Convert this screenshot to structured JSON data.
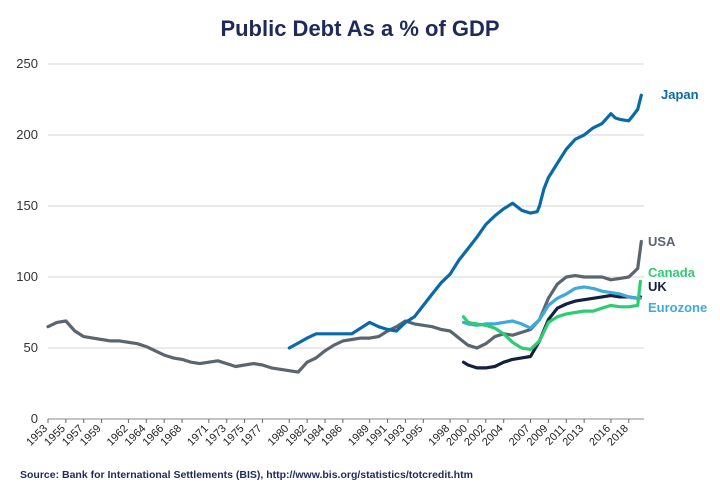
{
  "chart_data": {
    "type": "line",
    "title": "Public Debt As a % of GDP",
    "source": "Source: Bank for International Settlements (BIS), http://www.bis.org/statistics/totcredit.htm",
    "ylim": [
      0,
      250
    ],
    "yticks": [
      0,
      50,
      100,
      150,
      200,
      250
    ],
    "xlim": [
      1953,
      2019.7
    ],
    "xticks": [
      "1953",
      "1955",
      "1957",
      "1959",
      "1962",
      "1964",
      "1966",
      "1968",
      "1971",
      "1973",
      "1975",
      "1977",
      "1980",
      "1982",
      "1984",
      "1986",
      "1989",
      "1991",
      "1993",
      "1995",
      "1998",
      "2000",
      "2002",
      "2004",
      "2007",
      "2009",
      "2011",
      "2013",
      "2016",
      "2018"
    ],
    "grid": "horizontal",
    "series": [
      {
        "name": "Japan",
        "color": "#0a6aa6",
        "x": [
          1980,
          1982,
          1983,
          1985,
          1987,
          1989,
          1990,
          1991,
          1992,
          1993,
          1994,
          1995,
          1996,
          1997,
          1998,
          1999,
          2000,
          2001,
          2002,
          2003,
          2004,
          2005,
          2006,
          2007,
          2007.75,
          2008,
          2008.5,
          2009,
          2010,
          2011,
          2012,
          2013,
          2014,
          2015,
          2016,
          2016.5,
          2017,
          2018,
          2018.5,
          2019,
          2019.4
        ],
        "y": [
          50,
          57,
          60,
          60,
          60,
          68,
          65,
          63,
          62,
          68,
          72,
          80,
          88,
          96,
          102,
          112,
          120,
          128,
          137,
          143,
          148,
          152,
          147,
          145,
          146,
          150,
          162,
          170,
          180,
          190,
          197,
          200,
          205,
          208,
          215,
          212,
          211,
          210,
          214,
          218,
          228
        ]
      },
      {
        "name": "USA",
        "color": "#5a6570",
        "x": [
          1953,
          1954,
          1955,
          1956,
          1957,
          1958,
          1959,
          1960,
          1961,
          1962,
          1963,
          1964,
          1965,
          1966,
          1967,
          1968,
          1969,
          1970,
          1971,
          1972,
          1973,
          1974,
          1975,
          1976,
          1977,
          1978,
          1979,
          1980,
          1981,
          1982,
          1983,
          1984,
          1985,
          1986,
          1987,
          1988,
          1989,
          1990,
          1991,
          1992,
          1993,
          1994,
          1995,
          1996,
          1997,
          1998,
          1999,
          2000,
          2001,
          2002,
          2003,
          2004,
          2005,
          2006,
          2007,
          2008,
          2009,
          2010,
          2011,
          2012,
          2013,
          2014,
          2015,
          2016,
          2017,
          2018,
          2019,
          2019.4
        ],
        "y": [
          65,
          68,
          69,
          62,
          58,
          57,
          56,
          55,
          55,
          54,
          53,
          51,
          48,
          45,
          43,
          42,
          40,
          39,
          40,
          41,
          39,
          37,
          38,
          39,
          38,
          36,
          35,
          34,
          33,
          40,
          43,
          48,
          52,
          55,
          56,
          57,
          57,
          58,
          62,
          65,
          69,
          67,
          66,
          65,
          63,
          62,
          57,
          52,
          50,
          53,
          58,
          60,
          59,
          61,
          63,
          70,
          85,
          95,
          100,
          101,
          100,
          100,
          100,
          98,
          99,
          100,
          106,
          125
        ]
      },
      {
        "name": "Canada",
        "color": "#2ecc71",
        "x": [
          1999.5,
          2000,
          2001,
          2002,
          2003,
          2004,
          2005,
          2006,
          2007,
          2008,
          2009,
          2010,
          2011,
          2012,
          2013,
          2014,
          2015,
          2016,
          2017,
          2018,
          2019,
          2019.3
        ],
        "y": [
          72,
          68,
          67,
          66,
          64,
          60,
          54,
          50,
          49,
          55,
          68,
          72,
          74,
          75,
          76,
          76,
          78,
          80,
          79,
          79,
          80,
          97
        ]
      },
      {
        "name": "UK",
        "color": "#12213f",
        "x": [
          1999.5,
          2000,
          2001,
          2002,
          2003,
          2004,
          2005,
          2006,
          2007,
          2008,
          2009,
          2010,
          2011,
          2012,
          2013,
          2014,
          2015,
          2016,
          2017,
          2018,
          2019,
          2019.3
        ],
        "y": [
          40,
          38,
          36,
          36,
          37,
          40,
          42,
          43,
          44,
          55,
          70,
          78,
          81,
          83,
          84,
          85,
          86,
          87,
          86,
          86,
          85,
          86
        ]
      },
      {
        "name": "Eurozone",
        "color": "#3fa9dc",
        "x": [
          1999.5,
          2000,
          2001,
          2002,
          2003,
          2004,
          2005,
          2006,
          2007,
          2008,
          2009,
          2010,
          2011,
          2012,
          2013,
          2014,
          2015,
          2016,
          2017,
          2018,
          2019,
          2019.3
        ],
        "y": [
          68,
          67,
          66,
          67,
          67,
          68,
          69,
          67,
          64,
          70,
          80,
          85,
          88,
          92,
          93,
          92,
          90,
          89,
          88,
          86,
          85,
          85
        ]
      }
    ],
    "labels": [
      {
        "text": "Japan",
        "color": "#0a6aa6"
      },
      {
        "text": "USA",
        "color": "#5a6570"
      },
      {
        "text": "Canada",
        "color": "#2ecc71"
      },
      {
        "text": "UK",
        "color": "#12213f"
      },
      {
        "text": "Eurozone",
        "color": "#3fa9dc"
      }
    ]
  }
}
